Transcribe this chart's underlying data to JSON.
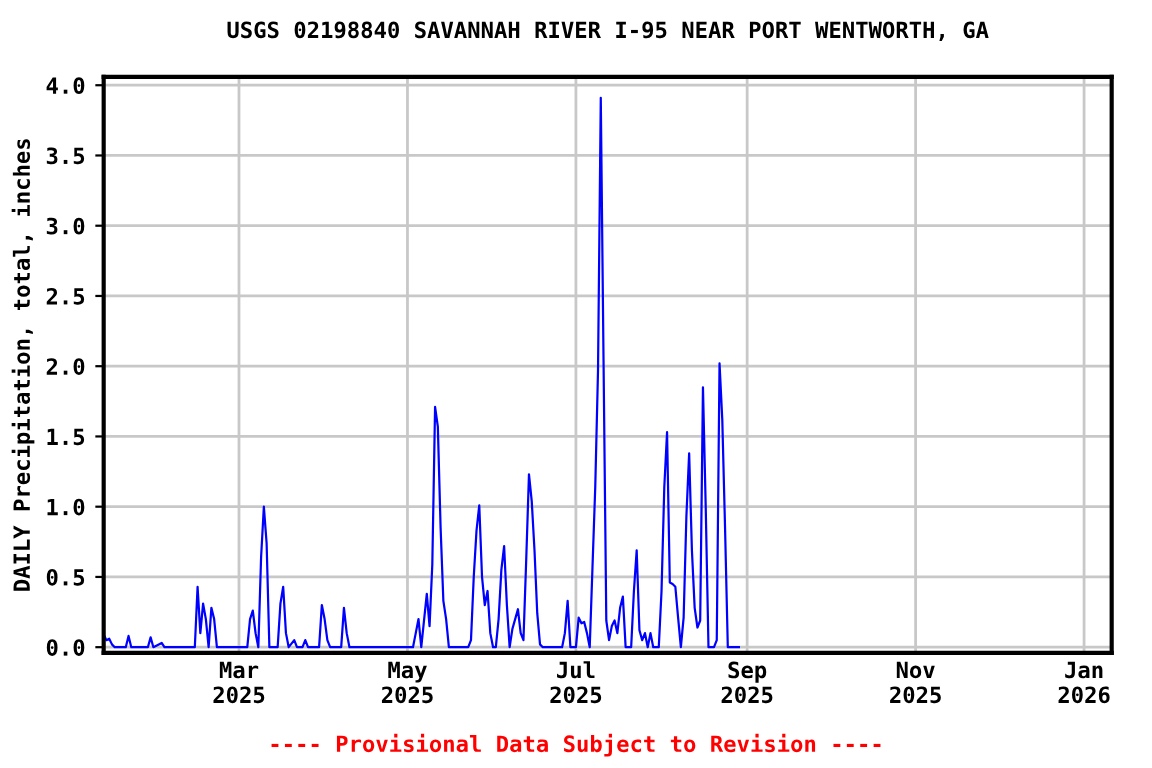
{
  "chart_data": {
    "type": "line",
    "title": "USGS 02198840 SAVANNAH RIVER I-95 NEAR PORT WENTWORTH, GA",
    "ylabel": "DAILY Precipitation, total, inches",
    "annotations": [
      "---- Provisional Data Subject to Revision ----"
    ],
    "x": [
      "2025-01-11",
      "2025-01-12",
      "2025-01-13",
      "2025-01-14",
      "2025-01-15",
      "2025-01-19",
      "2025-01-20",
      "2025-01-21",
      "2025-01-27",
      "2025-01-28",
      "2025-01-29",
      "2025-02-01",
      "2025-02-02",
      "2025-02-13",
      "2025-02-14",
      "2025-02-15",
      "2025-02-16",
      "2025-02-17",
      "2025-02-18",
      "2025-02-19",
      "2025-02-20",
      "2025-02-21",
      "2025-03-04",
      "2025-03-05",
      "2025-03-06",
      "2025-03-07",
      "2025-03-08",
      "2025-03-09",
      "2025-03-10",
      "2025-03-11",
      "2025-03-12",
      "2025-03-15",
      "2025-03-16",
      "2025-03-17",
      "2025-03-18",
      "2025-03-19",
      "2025-03-21",
      "2025-03-22",
      "2025-03-24",
      "2025-03-25",
      "2025-03-26",
      "2025-03-30",
      "2025-03-31",
      "2025-04-01",
      "2025-04-02",
      "2025-04-03",
      "2025-04-07",
      "2025-04-08",
      "2025-04-09",
      "2025-04-10",
      "2025-05-03",
      "2025-05-04",
      "2025-05-05",
      "2025-05-06",
      "2025-05-07",
      "2025-05-08",
      "2025-05-09",
      "2025-05-10",
      "2025-05-11",
      "2025-05-12",
      "2025-05-13",
      "2025-05-14",
      "2025-05-15",
      "2025-05-16",
      "2025-05-23",
      "2025-05-24",
      "2025-05-25",
      "2025-05-26",
      "2025-05-27",
      "2025-05-28",
      "2025-05-29",
      "2025-05-30",
      "2025-05-31",
      "2025-06-01",
      "2025-06-02",
      "2025-06-03",
      "2025-06-04",
      "2025-06-05",
      "2025-06-06",
      "2025-06-07",
      "2025-06-08",
      "2025-06-09",
      "2025-06-10",
      "2025-06-11",
      "2025-06-12",
      "2025-06-13",
      "2025-06-14",
      "2025-06-15",
      "2025-06-16",
      "2025-06-17",
      "2025-06-18",
      "2025-06-19",
      "2025-06-25",
      "2025-06-26",
      "2025-06-27",
      "2025-06-28",
      "2025-06-29",
      "2025-07-01",
      "2025-07-02",
      "2025-07-03",
      "2025-07-04",
      "2025-07-05",
      "2025-07-06",
      "2025-07-07",
      "2025-07-08",
      "2025-07-09",
      "2025-07-10",
      "2025-07-11",
      "2025-07-12",
      "2025-07-13",
      "2025-07-14",
      "2025-07-15",
      "2025-07-16",
      "2025-07-17",
      "2025-07-18",
      "2025-07-19",
      "2025-07-21",
      "2025-07-22",
      "2025-07-23",
      "2025-07-24",
      "2025-07-25",
      "2025-07-26",
      "2025-07-27",
      "2025-07-28",
      "2025-07-29",
      "2025-07-31",
      "2025-08-01",
      "2025-08-02",
      "2025-08-03",
      "2025-08-04",
      "2025-08-05",
      "2025-08-06",
      "2025-08-07",
      "2025-08-08",
      "2025-08-09",
      "2025-08-10",
      "2025-08-11",
      "2025-08-12",
      "2025-08-13",
      "2025-08-14",
      "2025-08-15",
      "2025-08-16",
      "2025-08-17",
      "2025-08-18",
      "2025-08-20",
      "2025-08-21",
      "2025-08-22",
      "2025-08-23",
      "2025-08-24",
      "2025-08-25",
      "2025-08-29"
    ],
    "series": [
      {
        "color": "#0000ff",
        "values": [
          0.09,
          0.05,
          0.06,
          0.02,
          0,
          0,
          0.08,
          0,
          0,
          0.07,
          0,
          0.03,
          0,
          0,
          0.43,
          0.1,
          0.31,
          0.2,
          0,
          0.28,
          0.2,
          0,
          0,
          0.2,
          0.26,
          0.1,
          0,
          0.64,
          1.0,
          0.74,
          0,
          0,
          0.31,
          0.43,
          0.1,
          0,
          0.05,
          0,
          0,
          0.05,
          0,
          0,
          0.3,
          0.2,
          0.05,
          0,
          0,
          0.28,
          0.1,
          0,
          0,
          0.1,
          0.2,
          0,
          0.19,
          0.38,
          0.15,
          0.59,
          1.71,
          1.57,
          0.85,
          0.33,
          0.2,
          0,
          0,
          0.05,
          0.5,
          0.83,
          1.01,
          0.5,
          0.3,
          0.4,
          0.1,
          0,
          0,
          0.2,
          0.55,
          0.72,
          0.3,
          0,
          0.13,
          0.2,
          0.27,
          0.1,
          0.05,
          0.62,
          1.23,
          1.04,
          0.69,
          0.24,
          0.02,
          0,
          0,
          0,
          0.1,
          0.33,
          0,
          0,
          0.21,
          0.17,
          0.18,
          0.1,
          0,
          0.57,
          1.14,
          1.97,
          3.91,
          2.04,
          0.19,
          0.05,
          0.15,
          0.19,
          0.1,
          0.28,
          0.36,
          0,
          0,
          0.4,
          0.69,
          0.12,
          0.05,
          0.1,
          0,
          0.1,
          0,
          0,
          0.4,
          1.14,
          1.53,
          0.46,
          0.45,
          0.43,
          0.21,
          0,
          0.21,
          0.93,
          1.38,
          0.69,
          0.28,
          0.14,
          0.19,
          1.85,
          1.0,
          0,
          0,
          0.05,
          2.02,
          1.62,
          0.85,
          0,
          0
        ]
      }
    ],
    "xlim": [
      "2025-01-11",
      "2026-01-11"
    ],
    "xticks": [
      {
        "value": "2025-03-01",
        "label": "Mar\n2025"
      },
      {
        "value": "2025-05-01",
        "label": "May\n2025"
      },
      {
        "value": "2025-07-01",
        "label": "Jul\n2025"
      },
      {
        "value": "2025-09-01",
        "label": "Sep\n2025"
      },
      {
        "value": "2025-11-01",
        "label": "Nov\n2025"
      },
      {
        "value": "2026-01-01",
        "label": "Jan\n2026"
      }
    ],
    "ylim": [
      -0.04,
      4.06
    ],
    "yticks": [
      {
        "value": 0,
        "label": "0.0"
      },
      {
        "value": 0.5,
        "label": "0.5"
      },
      {
        "value": 1,
        "label": "1.0"
      },
      {
        "value": 1.5,
        "label": "1.5"
      },
      {
        "value": 2,
        "label": "2.0"
      },
      {
        "value": 2.5,
        "label": "2.5"
      },
      {
        "value": 3,
        "label": "3.0"
      },
      {
        "value": 3.5,
        "label": "3.5"
      },
      {
        "value": 4,
        "label": "4.0"
      }
    ],
    "grid": true,
    "marker": "none",
    "line_style": "solid"
  }
}
